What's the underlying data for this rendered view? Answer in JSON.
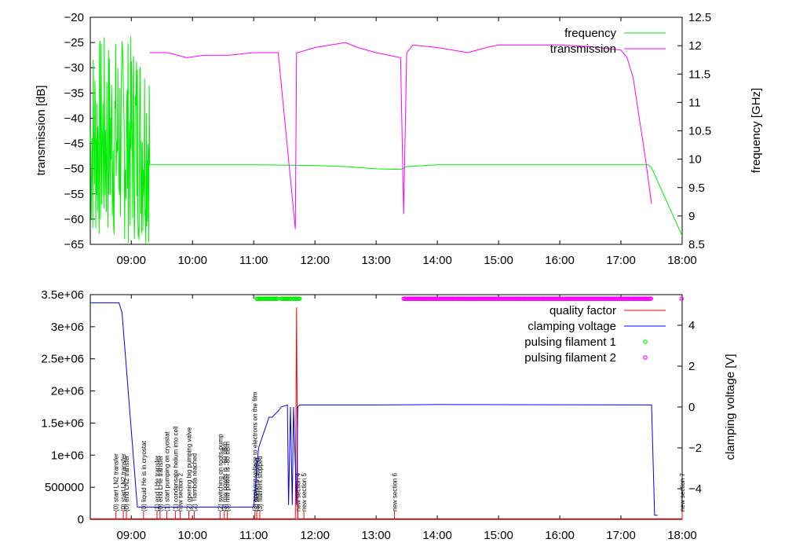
{
  "chart_data": [
    {
      "type": "line",
      "name": "top-panel",
      "title": "",
      "xlabel": "",
      "ylabel": "transmission [dB]",
      "y2label": "frequency [GHz]",
      "xlim": [
        8.33,
        18.0
      ],
      "ylim": [
        -65,
        -20
      ],
      "y2lim": [
        8.5,
        12.5
      ],
      "x_ticks": [
        "09:00",
        "10:00",
        "11:00",
        "12:00",
        "13:00",
        "14:00",
        "15:00",
        "16:00",
        "17:00",
        "18:00"
      ],
      "y_ticks": [
        -20,
        -25,
        -30,
        -35,
        -40,
        -45,
        -50,
        -55,
        -60,
        -65
      ],
      "y2_ticks": [
        "12.5",
        "12",
        "11.5",
        "11",
        "10.5",
        "10",
        "9.5",
        "9",
        "8.5"
      ],
      "legend_position": "top-right",
      "grid": false,
      "series": [
        {
          "name": "frequency",
          "axis": "y2",
          "color": "#00ee00",
          "x": [
            9.3,
            10.0,
            11.0,
            12.0,
            12.5,
            13.0,
            13.4,
            13.5,
            14.0,
            15.0,
            16.0,
            17.0,
            17.45,
            17.5,
            18.0
          ],
          "y": [
            9.9,
            9.9,
            9.9,
            9.89,
            9.87,
            9.83,
            9.82,
            9.87,
            9.9,
            9.9,
            9.9,
            9.9,
            9.9,
            9.85,
            8.65
          ],
          "noisy_region": {
            "x_from": 8.33,
            "x_to": 9.3,
            "y_from": 8.5,
            "y_to": 12.2
          }
        },
        {
          "name": "transmission",
          "axis": "y",
          "color": "#ff00ff",
          "x": [
            9.3,
            9.6,
            9.9,
            10.2,
            10.6,
            11.0,
            11.4,
            11.68,
            11.7,
            11.72,
            12.0,
            12.5,
            12.7,
            13.0,
            13.4,
            13.45,
            13.5,
            13.6,
            14.0,
            14.5,
            14.8,
            15.0,
            15.5,
            16.0,
            16.5,
            17.0,
            17.1,
            17.2,
            17.3,
            17.4,
            17.5
          ],
          "y": [
            -27,
            -27,
            -28,
            -27.5,
            -27.5,
            -27,
            -27,
            -62,
            -27,
            -27,
            -26,
            -25,
            -26,
            -27,
            -28,
            -59,
            -27,
            -25.5,
            -26,
            -27,
            -26,
            -25.5,
            -25.5,
            -25.5,
            -25.8,
            -26.5,
            -28,
            -32,
            -40,
            -48,
            -57
          ]
        }
      ]
    },
    {
      "type": "line",
      "name": "bottom-panel",
      "title": "",
      "xlabel": "",
      "ylabel": "",
      "y2label": "clamping voltage [V]",
      "xlim": [
        8.33,
        18.0
      ],
      "ylim": [
        0,
        3500000
      ],
      "y2lim": [
        -5.5,
        5.5
      ],
      "x_ticks": [
        "09:00",
        "10:00",
        "11:00",
        "12:00",
        "13:00",
        "14:00",
        "15:00",
        "16:00",
        "17:00",
        "18:00"
      ],
      "y_ticks": [
        "3.5e+06",
        "3e+06",
        "2.5e+06",
        "2e+06",
        "1.5e+06",
        "1e+06",
        "500000",
        "0"
      ],
      "y2_ticks": [
        "4",
        "2",
        "0",
        "−2",
        "−4"
      ],
      "legend_position": "top-right",
      "grid": false,
      "series": [
        {
          "name": "quality factor",
          "axis": "y",
          "color": "#ff0000",
          "x": [
            8.33,
            11.68,
            11.7,
            11.72,
            13.3,
            18.0
          ],
          "y": [
            10000,
            10000,
            3300000,
            10000,
            10000,
            10000
          ]
        },
        {
          "name": "clamping voltage",
          "axis": "y2",
          "color": "#0000ff",
          "x": [
            8.33,
            8.8,
            8.85,
            9.08,
            9.1,
            11.0,
            11.08,
            11.25,
            11.3,
            11.4,
            11.45,
            11.5,
            11.55,
            11.57,
            11.6,
            11.63,
            11.65,
            11.7,
            11.72,
            11.75,
            12.0,
            13.0,
            14.0,
            17.5,
            17.55,
            17.6
          ],
          "y": [
            5.1,
            5.1,
            4.6,
            -4.2,
            -4.9,
            -4.9,
            -2.0,
            -0.5,
            -0.5,
            -0.2,
            0.0,
            0.05,
            0.1,
            -4.8,
            0.0,
            -4.8,
            0.0,
            -4.8,
            0.0,
            0.1,
            0.1,
            0.1,
            0.12,
            0.1,
            -5.3,
            -5.3
          ]
        },
        {
          "name": "pulsing filament 1",
          "axis": "y2",
          "color": "#00ee00",
          "marker": "circle",
          "x_ranges": [
            [
              11.05,
              11.4
            ],
            [
              11.45,
              11.62
            ],
            [
              11.65,
              11.75
            ]
          ],
          "y": 5.3
        },
        {
          "name": "pulsing filament 2",
          "axis": "y2",
          "color": "#ff00ff",
          "marker": "circle",
          "x_ranges": [
            [
              13.45,
              17.5
            ],
            [
              17.99,
              18.0
            ]
          ],
          "y": 5.3
        }
      ],
      "annotations": [
        {
          "x": 8.75,
          "text": "(0) start LN2 transfer"
        },
        {
          "x": 8.87,
          "text": "(0) start LN2 transfer"
        },
        {
          "x": 8.92,
          "text": "(0) end LN2 transfer"
        },
        {
          "x": 9.2,
          "text": "(0) liquid He is in cryostat"
        },
        {
          "x": 9.42,
          "text": "(1) end LHe transfer"
        },
        {
          "x": 9.47,
          "text": "(0) end LHe transfer"
        },
        {
          "x": 9.58,
          "text": "(1) start pumping on cryostat"
        },
        {
          "x": 9.72,
          "text": "(1) condensate helium into cell"
        },
        {
          "x": 9.8,
          "text": "new section 2"
        },
        {
          "x": 9.94,
          "text": "(2) opening big pumping valve"
        },
        {
          "x": 10.03,
          "text": "(2) Tlambda reached"
        },
        {
          "x": 10.45,
          "text": "(2) switching on roots-pump"
        },
        {
          "x": 10.52,
          "text": "(3) mw power is -60 dBm"
        },
        {
          "x": 10.57,
          "text": "(3) mw power is -80 dBm"
        },
        {
          "x": 11.02,
          "text": "(3) applying voltage to electrons on the film"
        },
        {
          "x": 11.05,
          "text": "(3) filament heating"
        },
        {
          "x": 11.1,
          "text": "(3) filament stopped"
        },
        {
          "x": 11.72,
          "text": "new section 4"
        },
        {
          "x": 11.82,
          "text": "new section 5"
        },
        {
          "x": 13.3,
          "text": "new section 6"
        },
        {
          "x": 18.0,
          "text": "new section 7"
        }
      ]
    }
  ]
}
